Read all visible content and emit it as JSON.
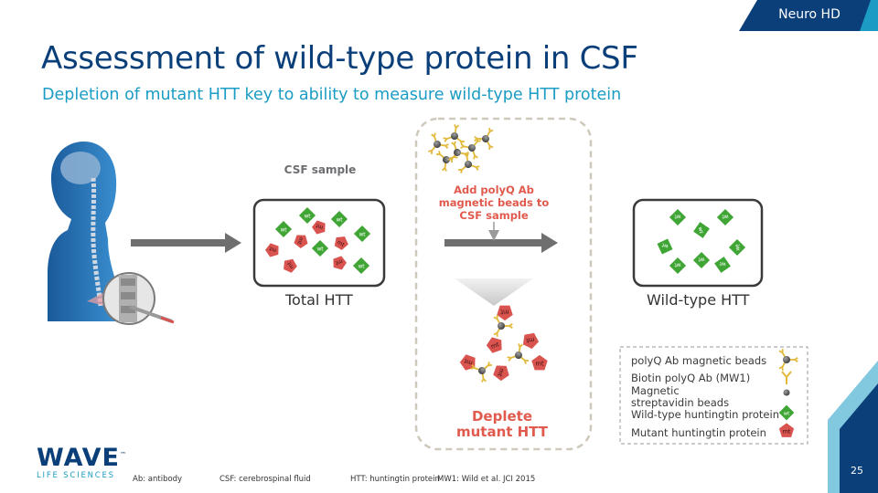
{
  "header": {
    "tag": "Neuro HD",
    "title": "Assessment of wild-type protein in CSF",
    "subtitle": "Depletion of mutant HTT key to ability to measure wild-type HTT protein"
  },
  "diagram": {
    "csf_sample_label": "CSF sample",
    "beads_step_label": "Add polyQ Ab magnetic beads to CSF sample",
    "deplete_label": "Deplete mutant HTT",
    "total_caption": "Total HTT",
    "wildtype_caption": "Wild-type HTT",
    "wt_tag": "wt",
    "mt_tag": "mt"
  },
  "legend": {
    "items": [
      {
        "label": "polyQ Ab magnetic beads",
        "icon": "bead-cluster-icon"
      },
      {
        "label": "Biotin polyQ Ab (MW1)",
        "icon": "antibody-icon"
      },
      {
        "label": "Magnetic streptavidin beads",
        "icon": "streptavidin-bead-icon"
      },
      {
        "label": "Wild-type huntingtin protein",
        "icon": "wildtype-protein-icon"
      },
      {
        "label": "Mutant huntingtin protein",
        "icon": "mutant-protein-icon"
      }
    ]
  },
  "footnotes": {
    "ab": "Ab: antibody",
    "csf": "CSF: cerebrospinal fluid",
    "htt": "HTT: huntingtin protein",
    "mw1": "MW1: Wild et al. JCI 2015"
  },
  "branding": {
    "logo": "WAVE",
    "logo_tm": "™",
    "logo_sub": "LIFE SCIENCES",
    "page_number": "25"
  },
  "colors": {
    "navy": "#0a3f7a",
    "cyan": "#1b9cc4",
    "wildtype_green": "#3fa535",
    "mutant_red": "#d9534f",
    "body_blue": "#1e6aa8"
  }
}
